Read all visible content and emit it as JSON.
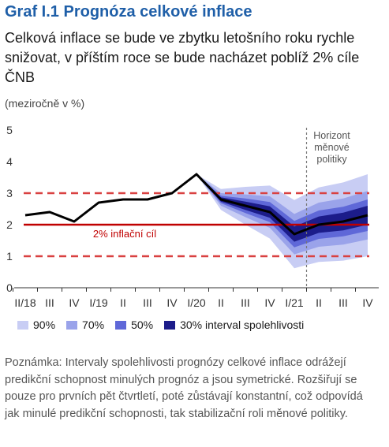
{
  "title": "Graf I.1 Prognóza celkové inflace",
  "subtitle": "Celková inflace se bude ve zbytku letošního roku rychle snižovat, v příštím roce se bude nacházet poblíž 2% cíle ČNB",
  "unit_label": "(meziročně v %)",
  "note": "Poznámka: Intervaly spolehlivosti prognózy celkové inflace odrážejí predikční schopnost minulých prognóz a jsou symetrické. Rozšiřují se pouze pro prvních pět čtvrtletí, poté zůstávají konstantní, což odpovídá jak minulé predikční schopnosti, tak stabilizační roli měnové politiky.",
  "colors": {
    "title": "#1f5fa8",
    "band_90": "#c8cdf4",
    "band_70": "#9aa3ea",
    "band_50": "#5f68d8",
    "band_30": "#1c1c8a",
    "line": "#000000",
    "target": "#c00000",
    "tolerance": "#d94141",
    "horizon": "#777777"
  },
  "chart_data": {
    "type": "line",
    "categories": [
      "II/18",
      "III",
      "IV",
      "I/19",
      "II",
      "III",
      "IV",
      "I/20",
      "II",
      "III",
      "IV",
      "I/21",
      "II",
      "III",
      "IV"
    ],
    "ylim": [
      0,
      5
    ],
    "yticks": [
      "0",
      "1",
      "2",
      "3",
      "4",
      "5"
    ],
    "series": [
      {
        "name": "",
        "values": [
          2.3,
          2.4,
          2.1,
          2.7,
          2.8,
          2.8,
          3.0,
          3.6,
          2.8,
          2.6,
          2.4,
          1.7,
          2.0,
          2.1,
          2.3
        ]
      }
    ],
    "forecast_start_index": 7,
    "bands": {
      "mid": [
        3.6,
        2.8,
        2.6,
        2.4,
        1.7,
        2.0,
        2.1,
        2.3
      ],
      "p30": [
        0,
        0.07,
        0.13,
        0.18,
        0.24,
        0.26,
        0.28,
        0.3
      ],
      "p50": [
        0,
        0.12,
        0.23,
        0.32,
        0.42,
        0.45,
        0.47,
        0.5
      ],
      "p70": [
        0,
        0.2,
        0.36,
        0.5,
        0.64,
        0.7,
        0.73,
        0.77
      ],
      "p90": [
        0,
        0.33,
        0.6,
        0.84,
        1.08,
        1.18,
        1.24,
        1.3
      ]
    },
    "target": {
      "value": 2,
      "label": "2% inflační cíl"
    },
    "tolerance": [
      1,
      3
    ],
    "horizon": {
      "start_index": 12,
      "label": [
        "Horizont",
        "měnové",
        "politiky"
      ]
    },
    "legend": [
      {
        "label": "90%",
        "color_key": "band_90"
      },
      {
        "label": "70%",
        "color_key": "band_70"
      },
      {
        "label": "50%",
        "color_key": "band_50"
      },
      {
        "label": "30% interval spolehlivosti",
        "color_key": "band_30"
      }
    ]
  }
}
